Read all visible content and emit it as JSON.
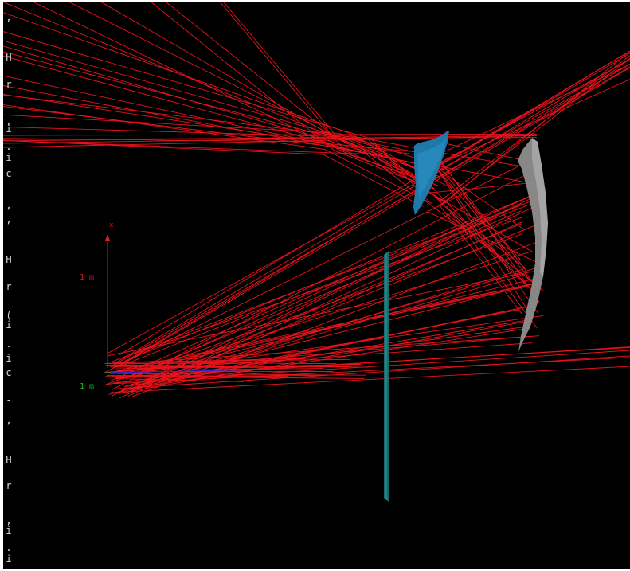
{
  "colors": {
    "background": "#000000",
    "ray": "#e8141c",
    "mirror_blue": "#1f7fb3",
    "mirror_gray": "#8e8e8e",
    "plate_teal": "#1b6f73",
    "axis_x": "#e01818",
    "axis_y": "#15c015",
    "axis_z": "#2a2ae0",
    "gutter_text": "#d8d8d8"
  },
  "left_gutter_chars": [
    ",",
    "H",
    "r",
    ",",
    "i",
    ".",
    "i",
    "c",
    ",",
    ",",
    "H",
    "r",
    "(",
    "i",
    ".",
    "i",
    "c",
    "-",
    ",",
    "H",
    "r",
    ",",
    "i",
    ".",
    "i"
  ],
  "axes": {
    "x_letter": "x",
    "x_scale_label": "1 m",
    "y_scale_label": "1 m"
  },
  "scene": {
    "components": [
      "mirror-blue",
      "mirror-gray",
      "plate-teal",
      "ray-bundle",
      "axis-gizmo"
    ],
    "ray_count": 90
  }
}
